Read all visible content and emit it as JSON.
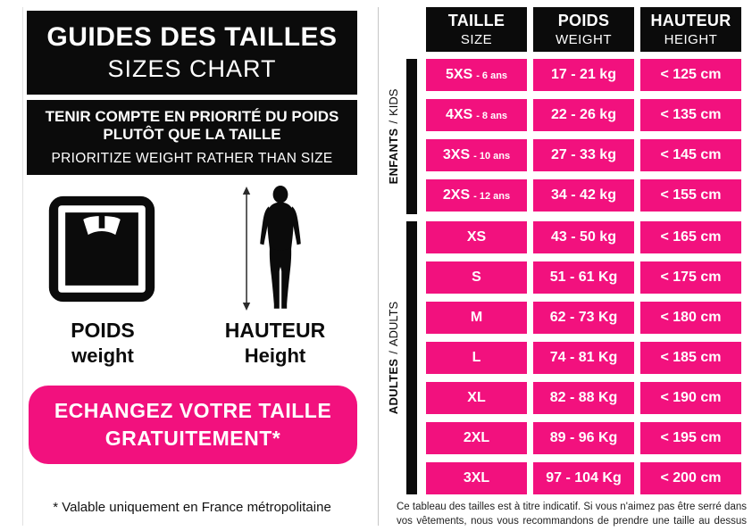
{
  "colors": {
    "pink": "#F2117E",
    "black": "#0B0B0B"
  },
  "left_panel": {
    "title_fr": "GUIDES DES TAILLES",
    "title_en": "SIZES CHART",
    "notice_fr_line1": "TENIR COMPTE EN PRIORITÉ DU POIDS",
    "notice_fr_line2": "PLUTÔT QUE LA TAILLE",
    "notice_en": "PRIORITIZE WEIGHT RATHER THAN SIZE",
    "icons": {
      "weight": "bathroom-scale-icon",
      "height": "person-height-arrow-icon"
    },
    "weight_label_fr": "POIDS",
    "weight_label_en": "weight",
    "height_label_fr": "HAUTEUR",
    "height_label_en": "Height",
    "banner_line1": "ECHANGEZ VOTRE TAILLE",
    "banner_line2": "GRATUITEMENT*",
    "footnote": "* Valable uniquement en France métropolitaine"
  },
  "table": {
    "headers": [
      {
        "fr": "TAILLE",
        "en": "SIZE"
      },
      {
        "fr": "POIDS",
        "en": "WEIGHT"
      },
      {
        "fr": "HAUTEUR",
        "en": "HEIGHT"
      }
    ],
    "sections": [
      {
        "label_fr": "ENFANTS",
        "separator": "/",
        "label_en": "KIDS",
        "rows": [
          {
            "size": "5XS",
            "age": "- 6 ans",
            "weight": "17 - 21 kg",
            "height": "< 125 cm"
          },
          {
            "size": "4XS",
            "age": "- 8 ans",
            "weight": "22 - 26 kg",
            "height": "< 135 cm"
          },
          {
            "size": "3XS",
            "age": "- 10 ans",
            "weight": "27 - 33 kg",
            "height": "< 145 cm"
          },
          {
            "size": "2XS",
            "age": "- 12 ans",
            "weight": "34 - 42 kg",
            "height": "< 155 cm"
          }
        ]
      },
      {
        "label_fr": "ADULTES",
        "separator": "/",
        "label_en": "ADULTS",
        "rows": [
          {
            "size": "XS",
            "age": "",
            "weight": "43 - 50 kg",
            "height": "< 165 cm"
          },
          {
            "size": "S",
            "age": "",
            "weight": "51 - 61 Kg",
            "height": "< 175 cm"
          },
          {
            "size": "M",
            "age": "",
            "weight": "62 - 73 Kg",
            "height": "< 180 cm"
          },
          {
            "size": "L",
            "age": "",
            "weight": "74 - 81 Kg",
            "height": "< 185 cm"
          },
          {
            "size": "XL",
            "age": "",
            "weight": "82 - 88 Kg",
            "height": "< 190 cm"
          },
          {
            "size": "2XL",
            "age": "",
            "weight": "89 - 96 Kg",
            "height": "< 195 cm"
          },
          {
            "size": "3XL",
            "age": "",
            "weight": "97 - 104 Kg",
            "height": "< 200 cm"
          }
        ]
      }
    ],
    "disclaimer": "Ce tableau des tailles est à titre indicatif. Si vous n'aimez pas être serré dans vos vêtements, nous vous recommandons de prendre une taille au dessus"
  }
}
